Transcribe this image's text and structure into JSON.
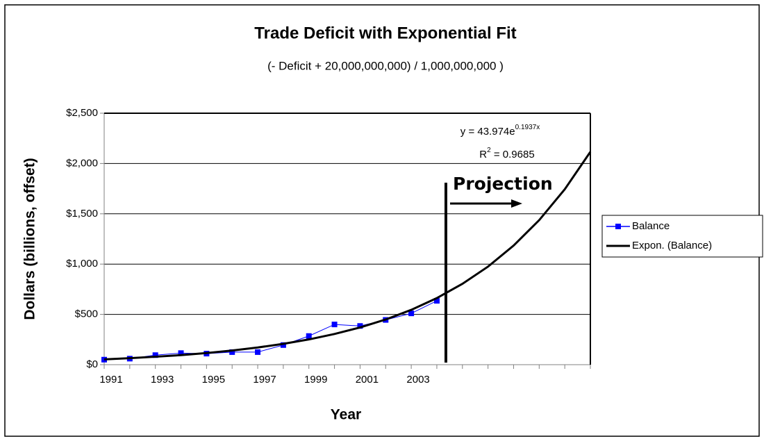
{
  "chart_data": {
    "type": "line",
    "title": "Trade Deficit with Exponential Fit",
    "subtitle": "(- Deficit + 20,000,000,000) / 1,000,000,000 )",
    "x_label": "Year",
    "y_label": "Dollars (billions, offset)",
    "x": [
      1991,
      1992,
      1993,
      1994,
      1995,
      1996,
      1997,
      1998,
      1999,
      2000,
      2001,
      2002,
      2003,
      2004,
      2005,
      2006,
      2007,
      2008,
      2009,
      2010
    ],
    "series": [
      {
        "name": "Balance",
        "color": "#0000ff",
        "marker": "square",
        "values": [
          50,
          60,
          95,
          115,
          110,
          125,
          125,
          195,
          285,
          400,
          385,
          445,
          510,
          635,
          null,
          null,
          null,
          null,
          null,
          null
        ]
      },
      {
        "name": "Expon. (Balance)",
        "color": "#000000",
        "marker": "none",
        "values": [
          53,
          65,
          79,
          95,
          116,
          141,
          171,
          207,
          251,
          305,
          370,
          449,
          545,
          662,
          804,
          975,
          1184,
          1437,
          1744,
          2116
        ]
      }
    ],
    "xlim": [
      1991,
      2010
    ],
    "xticks": [
      1991,
      1993,
      1995,
      1997,
      1999,
      2001,
      2003
    ],
    "xtick_marks": [
      1991,
      1992,
      1993,
      1994,
      1995,
      1996,
      1997,
      1998,
      1999,
      2000,
      2001,
      2002,
      2003,
      2004,
      2005,
      2006,
      2007,
      2008,
      2009,
      2010
    ],
    "ylim": [
      0,
      2500
    ],
    "yticks": [
      {
        "value": 0,
        "label": "$0"
      },
      {
        "value": 500,
        "label": "$500"
      },
      {
        "value": 1000,
        "label": "$1,000"
      },
      {
        "value": 1500,
        "label": "$1,500"
      },
      {
        "value": 2000,
        "label": "$2,000"
      },
      {
        "value": 2500,
        "label": "$2,500"
      }
    ],
    "grid": true,
    "legend": "right",
    "annotations": {
      "equation": "y = 43.974e",
      "equation_exponent": "0.1937x",
      "r2_prefix": "R",
      "r2_exponent": "2",
      "r2_value": " = 0.9685",
      "projection": "Projection"
    }
  }
}
